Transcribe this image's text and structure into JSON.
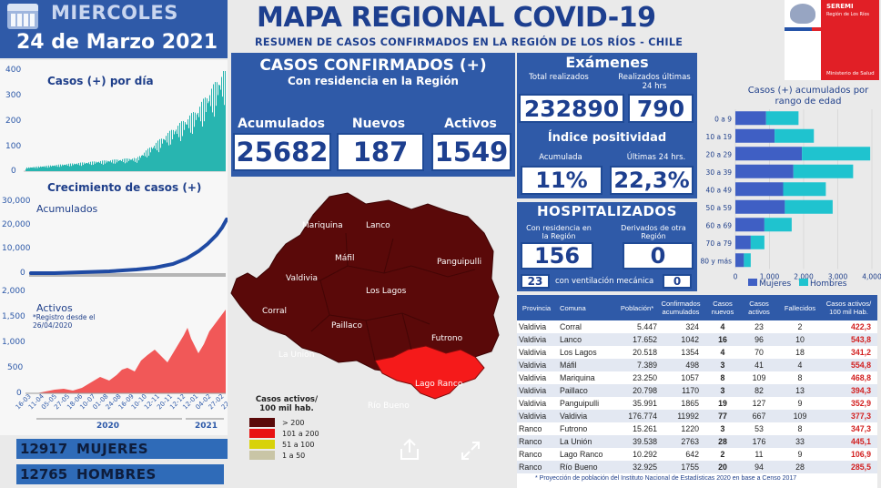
{
  "header": {
    "day": "MIERCOLES",
    "date": "24 de Marzo 2021",
    "title": "MAPA REGIONAL COVID-19",
    "subtitle": "RESUMEN DE CASOS CONFIRMADOS EN LA REGIÓN DE LOS RÍOS - CHILE",
    "seremi_label": "SEREMI",
    "seremi_region": "Región de Los Ríos",
    "ministry": "Ministerio de Salud"
  },
  "colors": {
    "brand_blue": "#2f5aa8",
    "dark_blue": "#1d3f8f",
    "map_dark": "#5a0909",
    "map_red": "#f51a1a",
    "area_red": "#f15858",
    "teal": "#28b5b0",
    "hombres": "#1fc3cf",
    "mujeres": "#3f5fc4"
  },
  "confirmados": {
    "title": "CASOS CONFIRMADOS (+)",
    "subtitle": "Con residencia en la Región",
    "acumulados_label": "Acumulados",
    "nuevos_label": "Nuevos",
    "activos_label": "Activos",
    "acumulados": "25682",
    "nuevos": "187",
    "activos": "1549"
  },
  "examenes": {
    "title": "Exámenes",
    "total_label": "Total realizados",
    "ultimas_label": "Realizados últimas 24 hrs",
    "total": "232890",
    "ultimas": "790",
    "positividad_title": "Índice positividad",
    "acumulada_label": "Acumulada",
    "ultimas24_label": "Últimas 24 hrs.",
    "acumulada": "11%",
    "ultimas24": "22,3%"
  },
  "hospitalizados": {
    "title": "HOSPITALIZADOS",
    "residencia_label": "Con residencia en la Región",
    "derivados_label": "Derivados de otra Región",
    "residencia": "156",
    "derivados": "0",
    "vent_label": "con ventilación mecánica",
    "vent_residencia": "23",
    "vent_derivados": "0"
  },
  "left_charts": {
    "casos_dia_title": "Casos (+) por día",
    "casos_dia_yticks": [
      "400",
      "300",
      "200",
      "100",
      "0"
    ],
    "crecimiento_title": "Crecimiento de casos (+)",
    "acumulados_label": "Acumulados",
    "acum_yticks": [
      "30,000",
      "20,000",
      "10,000",
      "0"
    ],
    "activos_label": "Activos",
    "activos_note": "*Registro desde el 26/04/2020",
    "activos_yticks": [
      "2,000",
      "1,500",
      "1,000",
      "500",
      "0"
    ],
    "xticks": [
      "16-03",
      "11-04",
      "05-05",
      "27-05",
      "18-06",
      "10-07",
      "01-08",
      "24-08",
      "16-09",
      "10-10",
      "12-11",
      "20-11",
      "12-12",
      "12-01",
      "04-02",
      "27-02",
      "22-03"
    ],
    "year_2020": "2020",
    "year_2021": "2021"
  },
  "map": {
    "communes": [
      "Mariquina",
      "Lanco",
      "Máfil",
      "Panguipulli",
      "Valdivia",
      "Los Lagos",
      "Corral",
      "Paillaco",
      "Futrono",
      "La Unión",
      "Lago Ranco",
      "Río Bueno"
    ],
    "legend_title": "Casos activos/ 100 mil hab.",
    "legend": [
      {
        "label": "> 200",
        "color": "#5a0909"
      },
      {
        "label": "101 a 200",
        "color": "#e81212"
      },
      {
        "label": "51 a 100",
        "color": "#d8d20a"
      },
      {
        "label": "1 a 50",
        "color": "#c9c5a6"
      }
    ]
  },
  "age_chart": {
    "title": "Casos (+) acumulados por rango de edad",
    "categories": [
      "0 a 9",
      "10 a 19",
      "20 a 29",
      "30 a 39",
      "40 a 49",
      "50 a 59",
      "60 a 69",
      "70 a 79",
      "80 y más"
    ],
    "xticks": [
      "0",
      "1,000",
      "2,000",
      "3,000",
      "4,000"
    ],
    "legend_mujeres": "Mujeres",
    "legend_hombres": "Hombres"
  },
  "chart_data": {
    "type": "bar",
    "title": "Casos (+) acumulados por rango de edad",
    "orientation": "horizontal-stacked",
    "categories": [
      "0 a 9",
      "10 a 19",
      "20 a 29",
      "30 a 39",
      "40 a 49",
      "50 a 59",
      "60 a 69",
      "70 a 79",
      "80 y más"
    ],
    "series": [
      {
        "name": "Mujeres",
        "values": [
          900,
          1150,
          1950,
          1700,
          1400,
          1450,
          850,
          450,
          250
        ]
      },
      {
        "name": "Hombres",
        "values": [
          950,
          1150,
          2000,
          1750,
          1250,
          1400,
          800,
          400,
          200
        ]
      }
    ],
    "xlim": [
      0,
      4000
    ]
  },
  "table": {
    "headers": [
      "Provincia",
      "Comuna",
      "Población*",
      "Confirmados acumulados",
      "Casos nuevos",
      "Casos activos",
      "Fallecidos",
      "Casos activos/ 100 mil Hab."
    ],
    "rows": [
      [
        "Valdivia",
        "Corral",
        "5.447",
        "324",
        "4",
        "23",
        "2",
        "422,3"
      ],
      [
        "Valdivia",
        "Lanco",
        "17.652",
        "1042",
        "16",
        "96",
        "10",
        "543,8"
      ],
      [
        "Valdivia",
        "Los Lagos",
        "20.518",
        "1354",
        "4",
        "70",
        "18",
        "341,2"
      ],
      [
        "Valdivia",
        "Máfil",
        "7.389",
        "498",
        "3",
        "41",
        "4",
        "554,8"
      ],
      [
        "Valdivia",
        "Mariquina",
        "23.250",
        "1057",
        "8",
        "109",
        "8",
        "468,8"
      ],
      [
        "Valdivia",
        "Paillaco",
        "20.798",
        "1170",
        "3",
        "82",
        "13",
        "394,3"
      ],
      [
        "Valdivia",
        "Panguipulli",
        "35.991",
        "1865",
        "19",
        "127",
        "9",
        "352,9"
      ],
      [
        "Valdivia",
        "Valdivia",
        "176.774",
        "11992",
        "77",
        "667",
        "109",
        "377,3"
      ],
      [
        "Ranco",
        "Futrono",
        "15.261",
        "1220",
        "3",
        "53",
        "8",
        "347,3"
      ],
      [
        "Ranco",
        "La Unión",
        "39.538",
        "2763",
        "28",
        "176",
        "33",
        "445,1"
      ],
      [
        "Ranco",
        "Lago Ranco",
        "10.292",
        "642",
        "2",
        "11",
        "9",
        "106,9"
      ],
      [
        "Ranco",
        "Río Bueno",
        "32.925",
        "1755",
        "20",
        "94",
        "28",
        "285,5"
      ]
    ],
    "footnote": "* Proyección de población del Instituto Nacional de Estadísticas 2020 en base a Censo 2017"
  },
  "gender": {
    "mujeres_num": "12917",
    "mujeres_label": "MUJERES",
    "hombres_num": "12765",
    "hombres_label": "HOMBRES"
  }
}
